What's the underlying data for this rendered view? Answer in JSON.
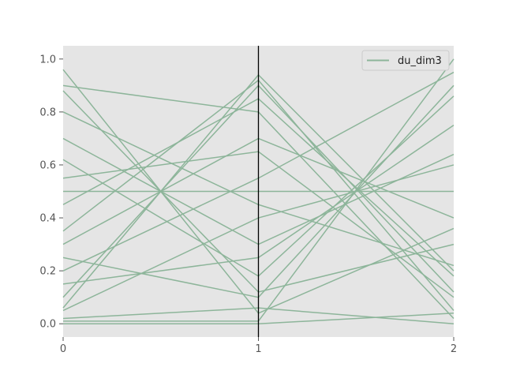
{
  "chart_data": {
    "type": "line",
    "subtype": "parallel-coordinates",
    "title": "",
    "xlabel": "",
    "ylabel": "",
    "xlim": [
      0,
      2
    ],
    "ylim": [
      -0.05,
      1.05
    ],
    "x_ticks": [
      "0",
      "1",
      "2"
    ],
    "y_ticks": [
      "0.0",
      "0.2",
      "0.4",
      "0.6",
      "0.8",
      "1.0"
    ],
    "x_tick_values": [
      0,
      1,
      2
    ],
    "y_tick_values": [
      0.0,
      0.2,
      0.4,
      0.6,
      0.8,
      1.0
    ],
    "grid": false,
    "background": "#e5e5e5",
    "axis_line_color": "#000000",
    "vertical_axis_lines_at": [
      1
    ],
    "legend": {
      "placement": "upper-right",
      "entries": [
        "du_dim3"
      ]
    },
    "series": [
      {
        "name": "du_dim3",
        "color": "#8db59a",
        "x": [
          0,
          1,
          2
        ],
        "lines": [
          [
            0.96,
            0.04,
            0.36
          ],
          [
            0.06,
            0.94,
            0.2
          ],
          [
            0.01,
            0.01,
            1.0
          ],
          [
            0.5,
            0.5,
            0.5
          ],
          [
            0.88,
            0.12,
            0.3
          ],
          [
            0.1,
            0.9,
            0.12
          ],
          [
            0.3,
            0.7,
            0.4
          ],
          [
            0.7,
            0.3,
            0.64
          ],
          [
            0.0,
            0.0,
            0.04
          ],
          [
            0.02,
            0.06,
            0.0
          ],
          [
            0.2,
            0.55,
            0.95
          ],
          [
            0.45,
            0.85,
            0.18
          ],
          [
            0.8,
            0.45,
            0.22
          ],
          [
            0.15,
            0.25,
            0.75
          ],
          [
            0.62,
            0.18,
            0.86
          ],
          [
            0.35,
            0.92,
            0.05
          ],
          [
            0.05,
            0.4,
            0.6
          ],
          [
            0.55,
            0.65,
            0.1
          ],
          [
            0.25,
            0.1,
            0.9
          ],
          [
            0.9,
            0.8,
            0.02
          ]
        ]
      }
    ]
  }
}
